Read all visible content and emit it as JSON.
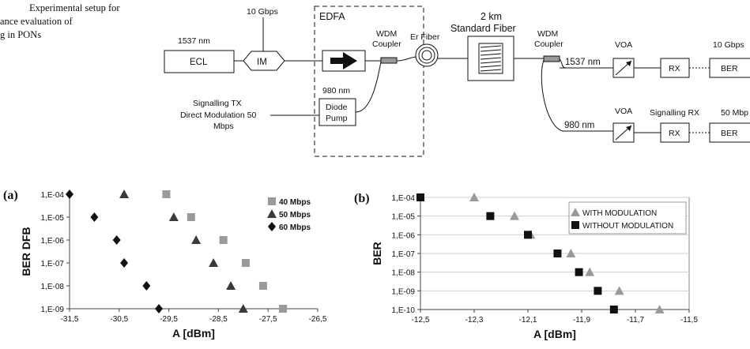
{
  "caption": {
    "lines": [
      "Experimental setup for",
      "ance evaluation of",
      "g in PONs"
    ]
  },
  "diagram": {
    "ecl": "ECL",
    "ecl_wavelength": "1537 nm",
    "im": "IM",
    "im_rate": "10 Gbps",
    "edfa": "EDFA",
    "pump_wavelength": "980 nm",
    "pump_line1": "Diode",
    "pump_line2": "Pump",
    "signalling_tx_line1": "Signalling TX",
    "signalling_tx_line2": "Direct Modulation 50",
    "signalling_tx_line3": "Mbps",
    "wdm1_line1": "WDM",
    "wdm1_line2": "Coupler",
    "er_fiber": "Er Fiber",
    "fiber_line1": "2 km",
    "fiber_line2": "Standard Fiber",
    "wdm2_line1": "WDM",
    "wdm2_line2": "Coupler",
    "out_1537": "1537 nm",
    "out_980": "980 nm",
    "voa_top": "VOA",
    "voa_bottom": "VOA",
    "rx_top": "RX",
    "rx_bottom": "RX",
    "signalling_rx": "Signalling RX",
    "rate_top": "10 Gbps",
    "rate_bottom": "50 Mbp",
    "ber_top": "BER",
    "ber_bottom": "BER"
  },
  "chart_data": [
    {
      "type": "scatter",
      "panel_label": "(a)",
      "xlabel": "A [dBm]",
      "ylabel": "BER DFB",
      "xlim": [
        -31.5,
        -26.5
      ],
      "x_ticks": [
        -31.5,
        -30.5,
        -29.5,
        -28.5,
        -27.5,
        -26.5
      ],
      "x_tick_labels": [
        "-31,5",
        "-30,5",
        "-29,5",
        "-28,5",
        "-27,5",
        "-26,5"
      ],
      "y_log": true,
      "ylim_exp": [
        -9,
        -4
      ],
      "y_ticks_exp": [
        -4,
        -5,
        -6,
        -7,
        -8,
        -9
      ],
      "y_tick_labels": [
        "1,E-04",
        "1,E-05",
        "1,E-06",
        "1,E-07",
        "1,E-08",
        "1,E-09"
      ],
      "grid": false,
      "legend_position": "top-right",
      "series": [
        {
          "name": "40 Mbps",
          "marker": "square",
          "color": "#9a9a9a",
          "x": [
            -29.55,
            -29.05,
            -28.4,
            -27.95,
            -27.6,
            -27.2
          ],
          "y": [
            "1,E-04",
            "1,E-05",
            "1,E-06",
            "1,E-07",
            "1,E-08",
            "1,E-09"
          ]
        },
        {
          "name": "50 Mbps",
          "marker": "triangle",
          "color": "#3a3a3a",
          "x": [
            -30.4,
            -29.4,
            -28.95,
            -28.6,
            -28.25,
            -28.0
          ],
          "y": [
            "1,E-04",
            "1,E-05",
            "1,E-06",
            "1,E-07",
            "1,E-08",
            "1,E-09"
          ]
        },
        {
          "name": "60 Mbps",
          "marker": "diamond",
          "color": "#111111",
          "x": [
            -31.5,
            -31.0,
            -30.55,
            -30.4,
            -29.95,
            -29.7
          ],
          "y": [
            "1,E-04",
            "1,E-05",
            "1,E-06",
            "1,E-07",
            "1,E-08",
            "1,E-09"
          ]
        }
      ]
    },
    {
      "type": "scatter",
      "panel_label": "(b)",
      "xlabel": "A [dBm]",
      "ylabel": "BER",
      "xlim": [
        -12.5,
        -11.5
      ],
      "x_ticks": [
        -12.5,
        -12.3,
        -12.1,
        -11.9,
        -11.7,
        -11.5
      ],
      "x_tick_labels": [
        "-12,5",
        "-12,3",
        "-12,1",
        "-11,9",
        "-11,7",
        "-11,5"
      ],
      "y_log": true,
      "ylim_exp": [
        -10,
        -4
      ],
      "y_ticks_exp": [
        -4,
        -5,
        -6,
        -7,
        -8,
        -9,
        -10
      ],
      "y_tick_labels": [
        "1,E-04",
        "1,E-05",
        "1,E-06",
        "1,E-07",
        "1,E-08",
        "1,E-09",
        "1,E-10"
      ],
      "grid": true,
      "legend_position": "top-right",
      "series": [
        {
          "name": "WITH MODULATION",
          "marker": "triangle",
          "color": "#9a9a9a",
          "x": [
            -12.3,
            -12.15,
            -12.09,
            -11.94,
            -11.87,
            -11.76,
            -11.61
          ],
          "y": [
            "1,E-04",
            "1,E-05",
            "1,E-06",
            "1,E-07",
            "1,E-08",
            "1,E-09",
            "1,E-10"
          ]
        },
        {
          "name": "WITHOUT MODULATION",
          "marker": "square",
          "color": "#111111",
          "x": [
            -12.5,
            -12.24,
            -12.1,
            -11.99,
            -11.91,
            -11.84,
            -11.78
          ],
          "y": [
            "1,E-04",
            "1,E-05",
            "1,E-06",
            "1,E-07",
            "1,E-08",
            "1,E-09",
            "1,E-10"
          ]
        }
      ]
    }
  ]
}
